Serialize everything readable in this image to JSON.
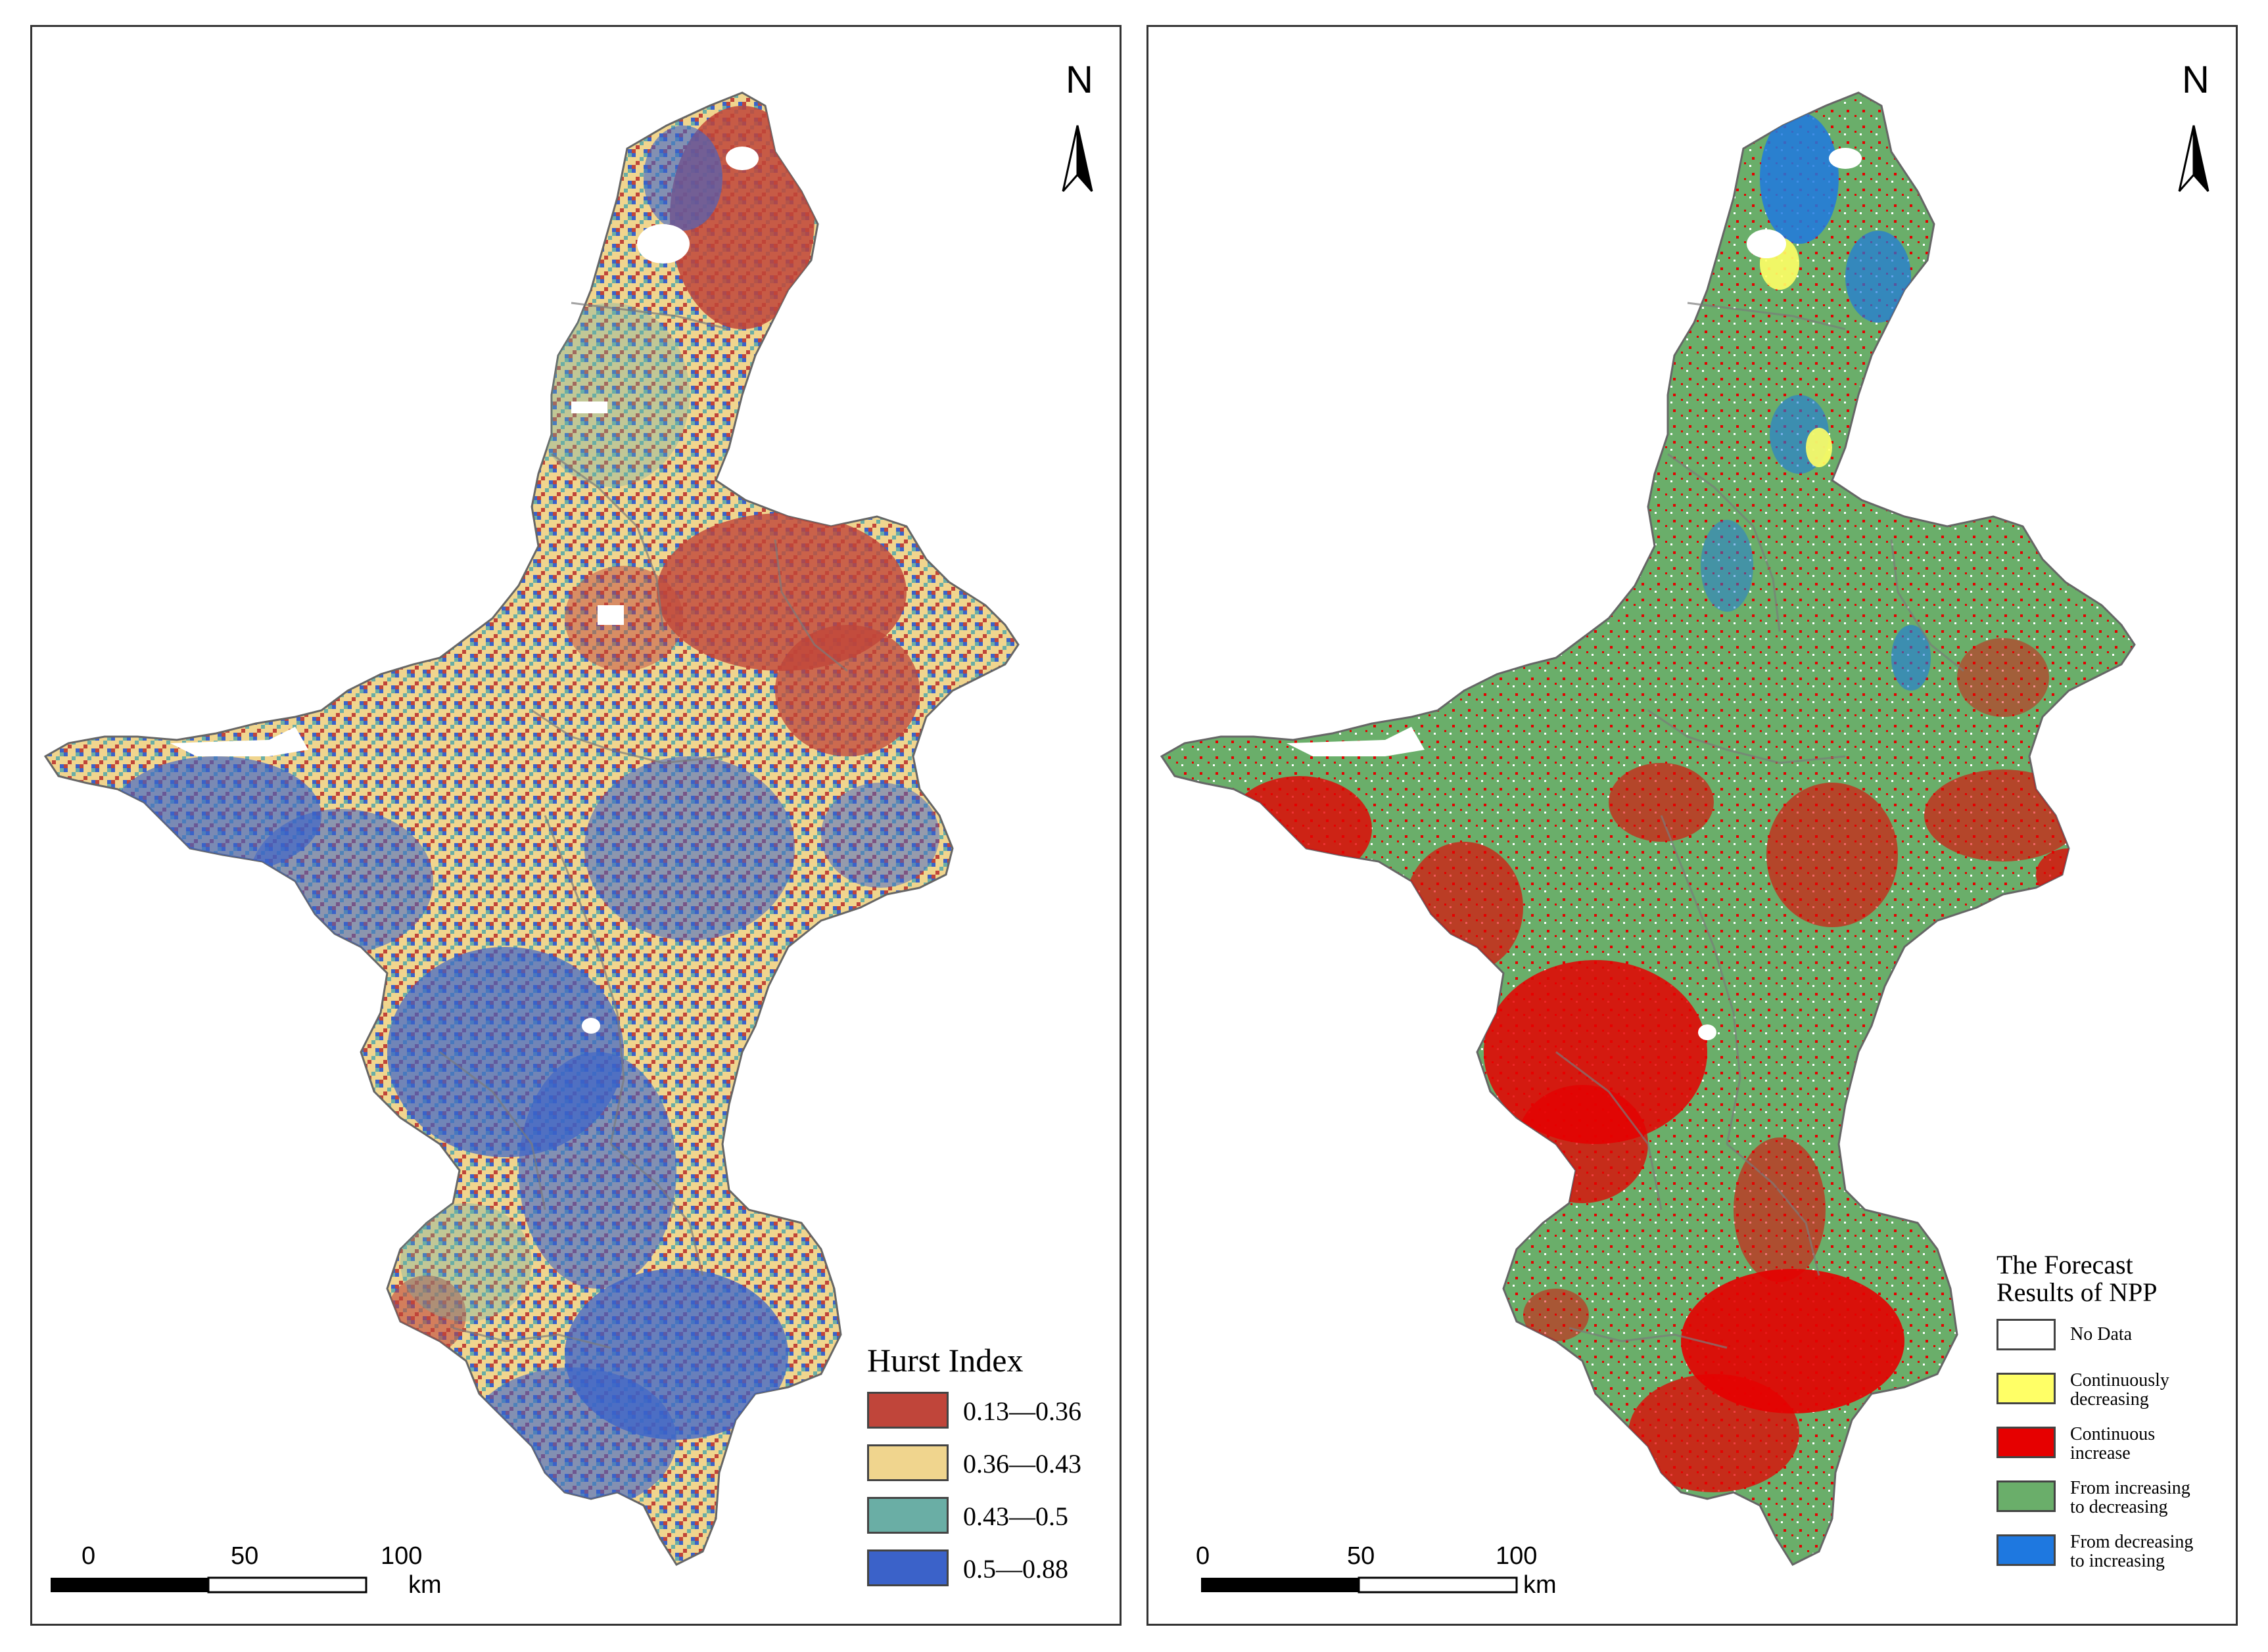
{
  "figure": {
    "panels": [
      {
        "id": "hurst",
        "north_label": "N",
        "legend": {
          "title_lines": [
            "Hurst Index"
          ],
          "items": [
            {
              "label_lines": [
                "0.13—0.36"
              ],
              "color": "#c0453a"
            },
            {
              "label_lines": [
                "0.36—0.43"
              ],
              "color": "#f0d58e"
            },
            {
              "label_lines": [
                "0.43—0.5"
              ],
              "color": "#6aaea5"
            },
            {
              "label_lines": [
                "0.5—0.88"
              ],
              "color": "#3b62c9"
            }
          ]
        },
        "scale_bar": {
          "ticks": [
            "0",
            "50",
            "100"
          ],
          "unit": "km"
        }
      },
      {
        "id": "forecast",
        "north_label": "N",
        "legend": {
          "title_lines": [
            "The Forecast",
            "Results of NPP"
          ],
          "items": [
            {
              "label_lines": [
                "No Data"
              ],
              "color": "#ffffff"
            },
            {
              "label_lines": [
                "Continuously",
                "decreasing"
              ],
              "color": "#ffff66"
            },
            {
              "label_lines": [
                "Continuous",
                "increase"
              ],
              "color": "#e60000"
            },
            {
              "label_lines": [
                "From increasing",
                "to decreasing"
              ],
              "color": "#6aae6a"
            },
            {
              "label_lines": [
                "From decreasing",
                "to increasing"
              ],
              "color": "#1e78e0"
            }
          ]
        },
        "scale_bar": {
          "ticks": [
            "0",
            "50",
            "100"
          ],
          "unit": "km"
        }
      }
    ]
  }
}
